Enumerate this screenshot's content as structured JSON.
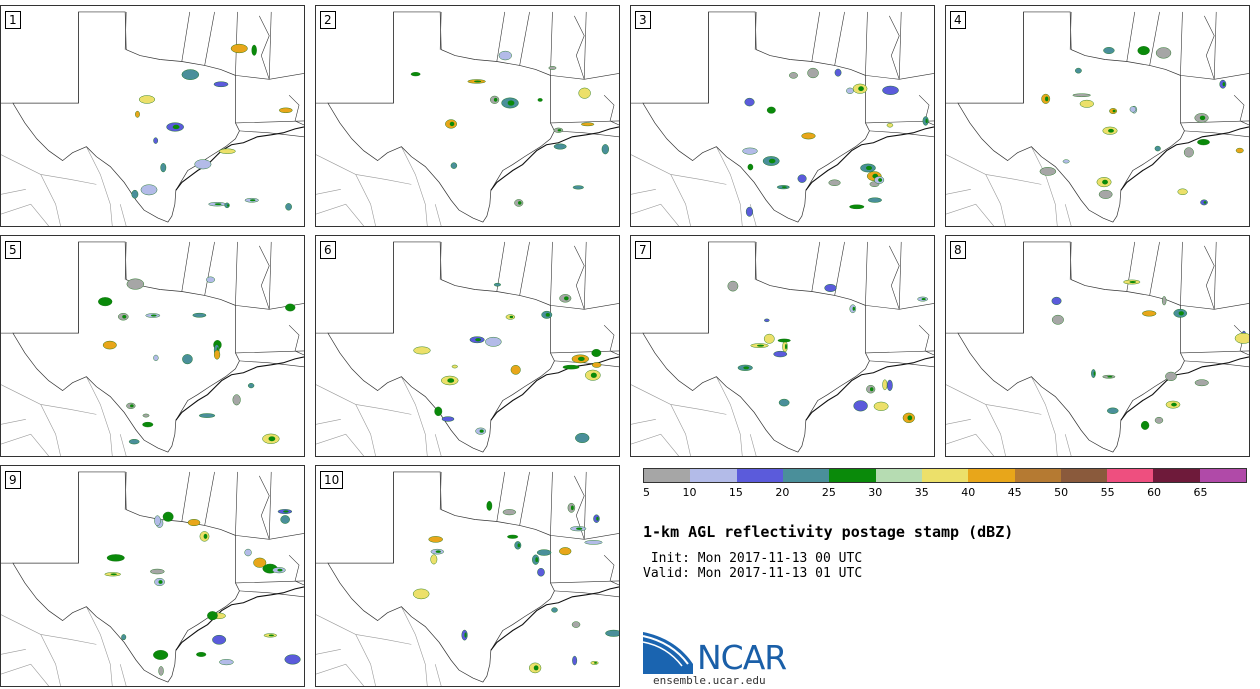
{
  "panels": [
    {
      "label": "1"
    },
    {
      "label": "2"
    },
    {
      "label": "3"
    },
    {
      "label": "4"
    },
    {
      "label": "5"
    },
    {
      "label": "6"
    },
    {
      "label": "7"
    },
    {
      "label": "8"
    },
    {
      "label": "9"
    },
    {
      "label": "10"
    }
  ],
  "colorbar": {
    "colors": [
      "#a6a6a6",
      "#b3bbe8",
      "#5b5bdb",
      "#4a8f9a",
      "#0a8a0a",
      "#b6dcb2",
      "#ece06a",
      "#e8a61a",
      "#b57a32",
      "#8a5a3c",
      "#ee4f7f",
      "#6e1a3a",
      "#b04aa8"
    ],
    "tick_labels": [
      "5",
      "10",
      "15",
      "20",
      "25",
      "30",
      "35",
      "40",
      "45",
      "50",
      "55",
      "60",
      "65"
    ]
  },
  "title": "1-km AGL reflectivity postage stamp (dBZ)",
  "init": " Init: Mon 2017-11-13 00 UTC",
  "valid": "Valid: Mon 2017-11-13 01 UTC",
  "logo": {
    "text": "NCAR",
    "site": "ensemble.ucar.edu"
  }
}
